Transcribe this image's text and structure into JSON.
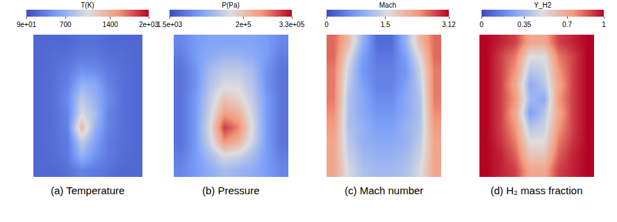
{
  "chart_data": [
    {
      "type": "heatmap",
      "title": "T(K)",
      "caption": "(a) Temperature",
      "tick_labels": false,
      "colorbar_range": [
        90,
        2000
      ],
      "colorbar_ticks": [
        {
          "value": 90,
          "label": "9e+01"
        },
        700,
        1400,
        {
          "value": 2000,
          "label": "2e+03"
        }
      ],
      "cells": [
        [
          250,
          250,
          250,
          300,
          300,
          250,
          250,
          250
        ],
        [
          250,
          280,
          300,
          350,
          350,
          300,
          280,
          250
        ],
        [
          250,
          300,
          350,
          500,
          450,
          350,
          300,
          250
        ],
        [
          250,
          300,
          400,
          700,
          650,
          400,
          300,
          250
        ],
        [
          250,
          300,
          450,
          900,
          700,
          450,
          300,
          250
        ],
        [
          250,
          300,
          400,
          1000,
          800,
          400,
          300,
          250
        ],
        [
          250,
          300,
          400,
          1300,
          700,
          400,
          300,
          250
        ],
        [
          250,
          300,
          350,
          900,
          600,
          350,
          300,
          250
        ],
        [
          250,
          280,
          350,
          700,
          500,
          350,
          280,
          250
        ],
        [
          250,
          250,
          300,
          400,
          350,
          300,
          250,
          250
        ]
      ]
    },
    {
      "type": "heatmap",
      "title": "P(Pa)",
      "caption": "(b) Pressure",
      "tick_labels": false,
      "colorbar_range": [
        1500,
        330000
      ],
      "colorbar_ticks": [
        {
          "value": 1500,
          "label": "1.5e+03"
        },
        {
          "value": 200000,
          "label": "2e+5"
        },
        {
          "value": 330000,
          "label": "3.3e+05"
        }
      ],
      "cells": [
        [
          60000,
          80000,
          90000,
          90000,
          90000,
          90000,
          80000,
          60000
        ],
        [
          50000,
          80000,
          100000,
          110000,
          110000,
          100000,
          80000,
          50000
        ],
        [
          40000,
          70000,
          120000,
          140000,
          140000,
          120000,
          70000,
          40000
        ],
        [
          40000,
          70000,
          130000,
          160000,
          160000,
          130000,
          70000,
          40000
        ],
        [
          40000,
          80000,
          140000,
          200000,
          180000,
          140000,
          80000,
          40000
        ],
        [
          40000,
          80000,
          150000,
          240000,
          220000,
          150000,
          80000,
          40000
        ],
        [
          40000,
          80000,
          160000,
          300000,
          260000,
          160000,
          80000,
          40000
        ],
        [
          40000,
          80000,
          150000,
          250000,
          220000,
          150000,
          80000,
          40000
        ],
        [
          50000,
          80000,
          120000,
          160000,
          150000,
          120000,
          80000,
          50000
        ],
        [
          60000,
          80000,
          100000,
          120000,
          110000,
          100000,
          80000,
          60000
        ]
      ]
    },
    {
      "type": "heatmap",
      "title": "Mach",
      "caption": "(c) Mach number",
      "tick_labels": false,
      "colorbar_range": [
        0,
        3.12
      ],
      "colorbar_ticks": [
        0,
        1.5,
        3.12
      ],
      "cells": [
        [
          2.6,
          2.0,
          1.0,
          0.3,
          0.3,
          1.0,
          2.0,
          2.6
        ],
        [
          2.6,
          1.6,
          0.8,
          0.4,
          0.4,
          0.8,
          1.6,
          2.6
        ],
        [
          2.5,
          1.4,
          0.7,
          0.5,
          0.5,
          0.7,
          1.4,
          2.5
        ],
        [
          2.5,
          1.3,
          0.8,
          0.5,
          0.5,
          0.8,
          1.3,
          2.5
        ],
        [
          2.5,
          1.2,
          0.9,
          0.6,
          0.6,
          0.9,
          1.2,
          2.5
        ],
        [
          2.4,
          1.2,
          0.9,
          0.7,
          0.7,
          0.9,
          1.2,
          2.4
        ],
        [
          2.3,
          1.2,
          1.0,
          0.8,
          0.8,
          1.0,
          1.2,
          2.3
        ],
        [
          2.2,
          1.3,
          1.0,
          0.9,
          0.9,
          1.0,
          1.3,
          2.2
        ],
        [
          2.2,
          1.4,
          1.1,
          1.0,
          1.0,
          1.1,
          1.4,
          2.2
        ],
        [
          2.2,
          1.5,
          1.2,
          1.1,
          1.1,
          1.2,
          1.5,
          2.2
        ]
      ]
    },
    {
      "type": "heatmap",
      "title": "Y_H2",
      "caption": "(d) H₂ mass fraction",
      "tick_labels": false,
      "colorbar_range": [
        0,
        1
      ],
      "colorbar_ticks": [
        0,
        0.35,
        0.7,
        1
      ],
      "cells": [
        [
          1,
          0.95,
          0.9,
          0.7,
          0.7,
          0.9,
          0.95,
          1
        ],
        [
          1,
          0.9,
          0.8,
          0.5,
          0.5,
          0.8,
          0.9,
          1
        ],
        [
          1,
          0.9,
          0.75,
          0.4,
          0.45,
          0.75,
          0.9,
          1
        ],
        [
          1,
          0.9,
          0.7,
          0.3,
          0.4,
          0.7,
          0.9,
          1
        ],
        [
          1,
          0.9,
          0.75,
          0.35,
          0.3,
          0.75,
          0.9,
          1
        ],
        [
          1,
          0.9,
          0.7,
          0.25,
          0.4,
          0.7,
          0.9,
          1
        ],
        [
          1,
          0.9,
          0.75,
          0.4,
          0.45,
          0.75,
          0.9,
          1
        ],
        [
          1,
          0.92,
          0.8,
          0.5,
          0.5,
          0.8,
          0.92,
          1
        ],
        [
          1,
          0.95,
          0.85,
          0.6,
          0.6,
          0.85,
          0.95,
          1
        ],
        [
          1,
          0.95,
          0.9,
          0.7,
          0.7,
          0.9,
          0.95,
          1
        ]
      ]
    }
  ]
}
